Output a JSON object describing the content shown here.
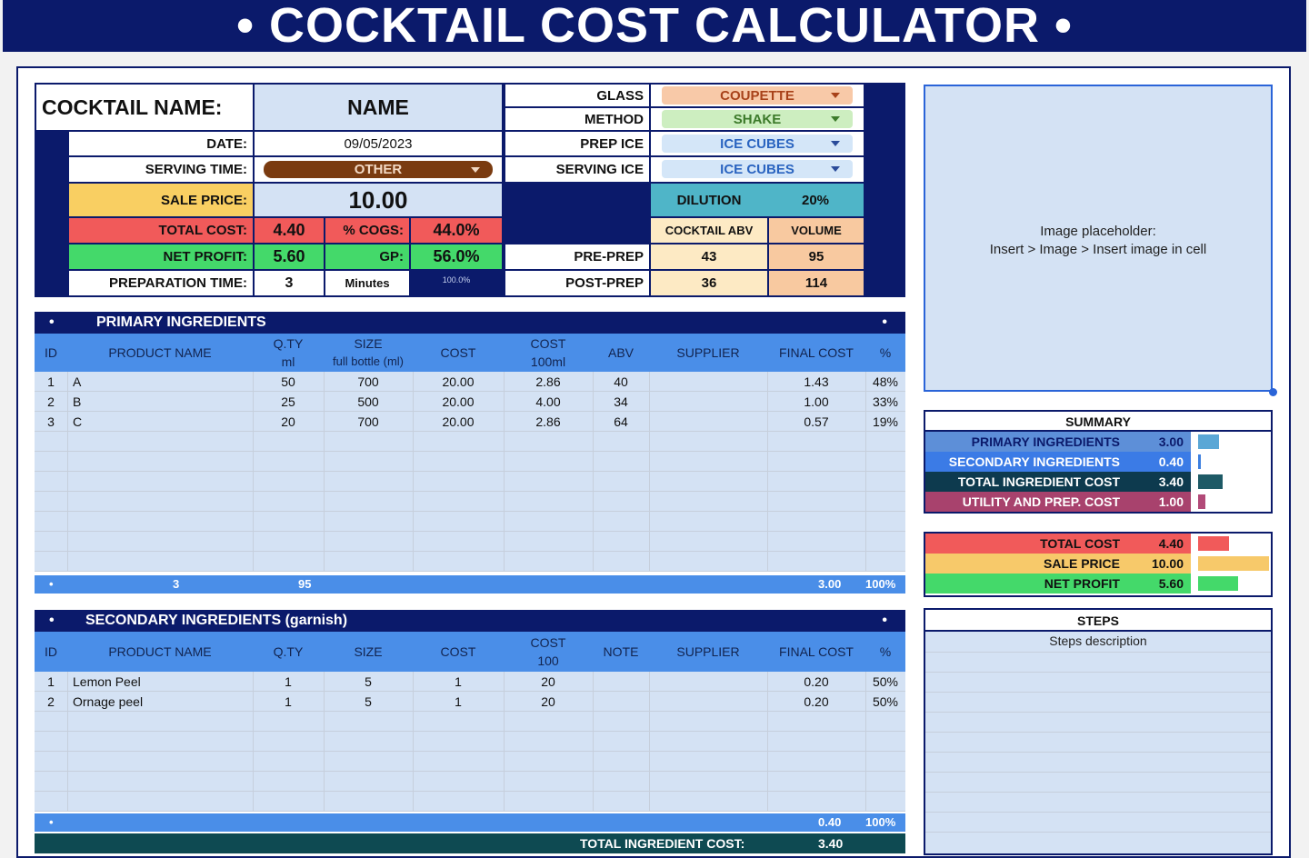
{
  "title": "• COCKTAIL COST CALCULATOR •",
  "info": {
    "cocktail_name_label": "COCKTAIL NAME:",
    "cocktail_name": "NAME",
    "date_label": "DATE:",
    "date": "09/05/2023",
    "serving_time_label": "SERVING TIME:",
    "serving_time": "OTHER",
    "sale_price_label": "SALE PRICE:",
    "sale_price": "10.00",
    "total_cost_label": "TOTAL COST:",
    "total_cost": "4.40",
    "cogs_label": "% COGS:",
    "cogs": "44.0%",
    "net_profit_label": "NET PROFIT:",
    "net_profit": "5.60",
    "gp_label": "GP:",
    "gp": "56.0%",
    "prep_time_label": "PREPARATION TIME:",
    "prep_time": "3",
    "prep_unit": "Minutes",
    "prep_pct": "100.0%"
  },
  "specs": {
    "glass_label": "GLASS",
    "glass": "COUPETTE",
    "method_label": "METHOD",
    "method": "SHAKE",
    "prep_ice_label": "PREP ICE",
    "prep_ice": "ICE CUBES",
    "serving_ice_label": "SERVING ICE",
    "serving_ice": "ICE CUBES",
    "dilution_label": "DILUTION",
    "dilution": "20%",
    "abv_label": "COCKTAIL ABV",
    "volume_label": "VOLUME",
    "pre_prep_label": "PRE-PREP",
    "pre_prep_abv": "43",
    "pre_prep_volume": "95",
    "post_prep_label": "POST-PREP",
    "post_prep_abv": "36",
    "post_prep_volume": "114"
  },
  "image_placeholder": {
    "line1": "Image placeholder:",
    "line2": "Insert > Image > Insert image in cell"
  },
  "primary": {
    "bullet": "•",
    "title": "PRIMARY INGREDIENTS",
    "headers": {
      "id": "ID",
      "name": "PRODUCT NAME",
      "qty1": "Q.TY",
      "qty2": "ml",
      "size1": "SIZE",
      "size2": "full bottle (ml)",
      "cost": "COST",
      "cost100_1": "COST",
      "cost100_2": "100ml",
      "abv": "ABV",
      "supplier": "SUPPLIER",
      "final": "FINAL COST",
      "pct": "%"
    },
    "rows": [
      {
        "id": "1",
        "name": "A",
        "qty": "50",
        "size": "700",
        "cost": "20.00",
        "cost100": "2.86",
        "abv": "40",
        "supplier": "",
        "final": "1.43",
        "pct": "48%"
      },
      {
        "id": "2",
        "name": "B",
        "qty": "25",
        "size": "500",
        "cost": "20.00",
        "cost100": "4.00",
        "abv": "34",
        "supplier": "",
        "final": "1.00",
        "pct": "33%"
      },
      {
        "id": "3",
        "name": "C",
        "qty": "20",
        "size": "700",
        "cost": "20.00",
        "cost100": "2.86",
        "abv": "64",
        "supplier": "",
        "final": "0.57",
        "pct": "19%"
      }
    ],
    "totals": {
      "bullet": "•",
      "count": "3",
      "qty": "95",
      "final": "3.00",
      "pct": "100%"
    }
  },
  "secondary": {
    "bullet": "•",
    "title": "SECONDARY INGREDIENTS (garnish)",
    "headers": {
      "id": "ID",
      "name": "PRODUCT NAME",
      "qty": "Q.TY",
      "size": "SIZE",
      "cost": "COST",
      "cost100_1": "COST",
      "cost100_2": "100",
      "note": "NOTE",
      "supplier": "SUPPLIER",
      "final": "FINAL COST",
      "pct": "%"
    },
    "rows": [
      {
        "id": "1",
        "name": "Lemon Peel",
        "qty": "1",
        "size": "5",
        "cost": "1",
        "cost100": "20",
        "final": "0.20",
        "pct": "50%"
      },
      {
        "id": "2",
        "name": "Ornage peel",
        "qty": "1",
        "size": "5",
        "cost": "1",
        "cost100": "20",
        "final": "0.20",
        "pct": "50%"
      }
    ],
    "totals": {
      "bullet": "•",
      "final": "0.40",
      "pct": "100%"
    },
    "grand_label": "TOTAL INGREDIENT COST:",
    "grand_value": "3.40"
  },
  "summary": {
    "title": "SUMMARY",
    "rows": [
      {
        "label": "PRIMARY INGREDIENTS",
        "value": "3.00",
        "share": 0.3,
        "color": "#5aa7d6",
        "bg": "#5d8fd8"
      },
      {
        "label": "SECONDARY INGREDIENTS",
        "value": "0.40",
        "share": 0.04,
        "color": "#3c7fe0",
        "bg": "#3b7be6"
      },
      {
        "label": "TOTAL INGREDIENT COST",
        "value": "3.40",
        "share": 0.34,
        "color": "#1e5a66",
        "bg": "#0d3a4e"
      },
      {
        "label": "UTILITY AND PREP. COST",
        "value": "1.00",
        "share": 0.1,
        "color": "#b24a78",
        "bg": "#a8426d"
      }
    ],
    "totals": [
      {
        "label": "TOTAL COST",
        "value": "4.40",
        "share": 0.44,
        "color": "#f15a5a",
        "bg": "#f15a5a"
      },
      {
        "label": "SALE PRICE",
        "value": "10.00",
        "share": 1.0,
        "color": "#f7c96a",
        "bg": "#f7c96a"
      },
      {
        "label": "NET PROFIT",
        "value": "5.60",
        "share": 0.56,
        "color": "#44d96a",
        "bg": "#44d96a"
      }
    ]
  },
  "steps": {
    "title": "STEPS",
    "placeholder": "Steps description"
  }
}
